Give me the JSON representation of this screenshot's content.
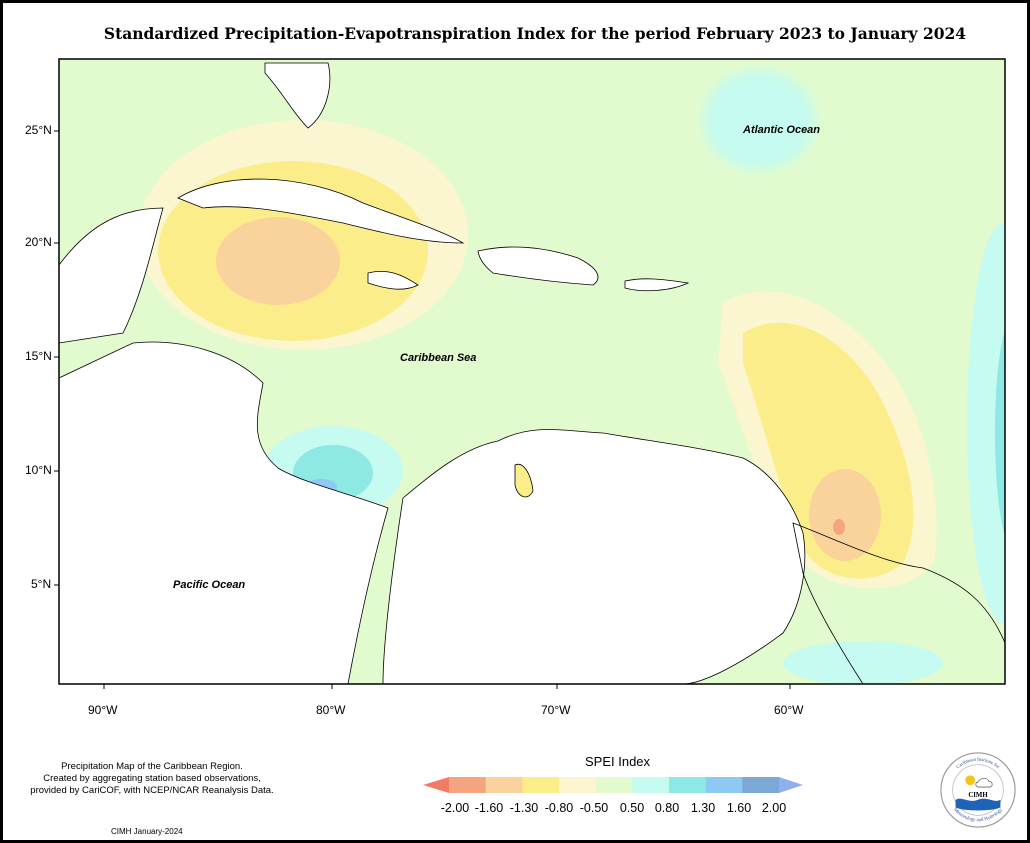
{
  "title": "Standardized Precipitation-Evapotranspiration Index for the period February 2023 to January 2024",
  "axes": {
    "lat_labels": [
      "25°N",
      "20°N",
      "15°N",
      "10°N",
      "5°N"
    ],
    "lon_labels": [
      "90°W",
      "80°W",
      "70°W",
      "60°W"
    ]
  },
  "map_labels": {
    "atlantic": "Atlantic Ocean",
    "caribbean": "Caribbean Sea",
    "pacific": "Pacific Ocean"
  },
  "legend": {
    "title": "SPEI Index",
    "ticks": [
      "-2.00",
      "-1.60",
      "-1.30",
      "-0.80",
      "-0.50",
      "0.50",
      "0.80",
      "1.30",
      "1.60",
      "2.00"
    ],
    "colors": [
      "#f37b63",
      "#f4a47f",
      "#f9d39b",
      "#fbee8a",
      "#fbf6d0",
      "#e2fbce",
      "#c5fbf0",
      "#8ee8e4",
      "#8ec9f3",
      "#79a9d4",
      "#8eb0ef"
    ]
  },
  "footer": {
    "lines": [
      "Precipitation Map of the Caribbean Region.",
      "Created by aggregating station based observations,",
      "provided by CariCOF, with NCEP/NCAR Reanalysis Data."
    ],
    "credit": "CIMH January-2024"
  },
  "logo": {
    "name": "CIMH",
    "ring_top": "Caribbean Institute for",
    "ring_bottom": "Meteorology and Hydrology"
  },
  "colors": {
    "background_near_normal": "#e2fbce",
    "moderately_dry": "#fbee8a",
    "severely_dry": "#f9d39b",
    "moderately_wet": "#c5fbf0",
    "very_wet": "#8ee8e4"
  }
}
